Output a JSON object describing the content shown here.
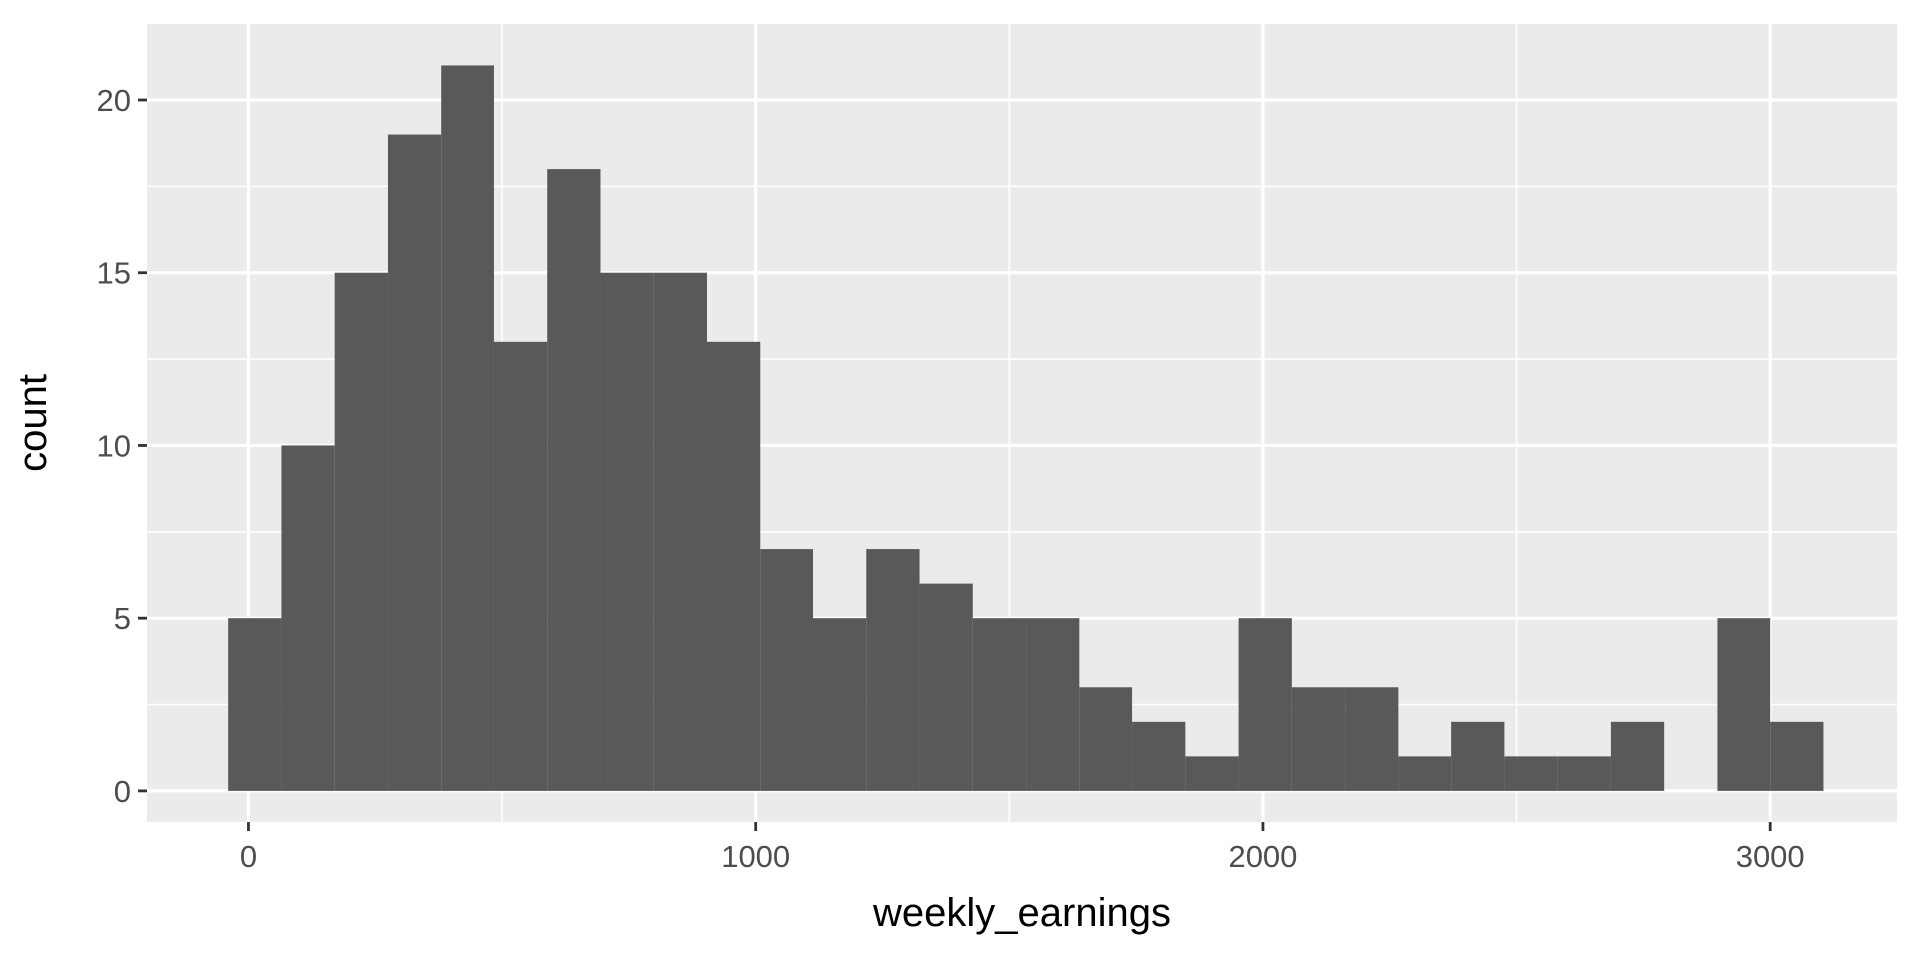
{
  "chart_data": {
    "type": "bar",
    "subtype": "histogram",
    "xlabel": "weekly_earnings",
    "ylabel": "count",
    "xlim": [
      -200,
      3250
    ],
    "ylim": [
      -0.9,
      22.2
    ],
    "x_ticks": [
      0,
      1000,
      2000,
      3000
    ],
    "x_tick_labels": [
      "0",
      "1000",
      "2000",
      "3000"
    ],
    "y_ticks": [
      0,
      5,
      10,
      15,
      20
    ],
    "y_tick_labels": [
      "0",
      "5",
      "10",
      "15",
      "20"
    ],
    "grid": true,
    "legend": "none",
    "colors": {
      "panel": "#ebebeb",
      "grid": "#ffffff",
      "bar": "#595959",
      "tick": "#333333"
    },
    "bin_width": 104.8,
    "bins": [
      {
        "x0": -40,
        "x1": 65,
        "count": 5
      },
      {
        "x0": 65,
        "x1": 170,
        "count": 10
      },
      {
        "x0": 170,
        "x1": 275,
        "count": 15
      },
      {
        "x0": 275,
        "x1": 380,
        "count": 19
      },
      {
        "x0": 380,
        "x1": 484,
        "count": 21
      },
      {
        "x0": 484,
        "x1": 589,
        "count": 13
      },
      {
        "x0": 589,
        "x1": 694,
        "count": 18
      },
      {
        "x0": 694,
        "x1": 799,
        "count": 15
      },
      {
        "x0": 799,
        "x1": 904,
        "count": 15
      },
      {
        "x0": 904,
        "x1": 1009,
        "count": 13
      },
      {
        "x0": 1009,
        "x1": 1113,
        "count": 7
      },
      {
        "x0": 1113,
        "x1": 1218,
        "count": 5
      },
      {
        "x0": 1218,
        "x1": 1323,
        "count": 7
      },
      {
        "x0": 1323,
        "x1": 1428,
        "count": 6
      },
      {
        "x0": 1428,
        "x1": 1533,
        "count": 5
      },
      {
        "x0": 1533,
        "x1": 1638,
        "count": 5
      },
      {
        "x0": 1638,
        "x1": 1742,
        "count": 3
      },
      {
        "x0": 1742,
        "x1": 1847,
        "count": 2
      },
      {
        "x0": 1847,
        "x1": 1952,
        "count": 1
      },
      {
        "x0": 1952,
        "x1": 2057,
        "count": 5
      },
      {
        "x0": 2057,
        "x1": 2162,
        "count": 3
      },
      {
        "x0": 2162,
        "x1": 2267,
        "count": 3
      },
      {
        "x0": 2267,
        "x1": 2371,
        "count": 1
      },
      {
        "x0": 2371,
        "x1": 2476,
        "count": 2
      },
      {
        "x0": 2476,
        "x1": 2581,
        "count": 1
      },
      {
        "x0": 2581,
        "x1": 2686,
        "count": 1
      },
      {
        "x0": 2686,
        "x1": 2791,
        "count": 2
      },
      {
        "x0": 2791,
        "x1": 2896,
        "count": 0
      },
      {
        "x0": 2896,
        "x1": 3000,
        "count": 5
      },
      {
        "x0": 3000,
        "x1": 3105,
        "count": 2
      }
    ]
  }
}
